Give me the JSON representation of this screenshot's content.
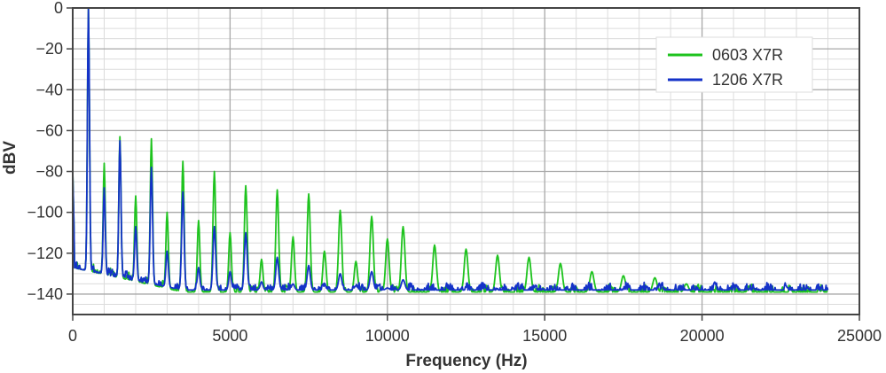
{
  "chart_data": {
    "type": "line",
    "title": "",
    "xlabel": "Frequency (Hz)",
    "ylabel": "dBV",
    "xlim": [
      0,
      25000
    ],
    "ylim": [
      -150,
      0
    ],
    "x_ticks": [
      0,
      5000,
      10000,
      15000,
      20000,
      25000
    ],
    "y_ticks": [
      0,
      -20,
      -40,
      -60,
      -80,
      -100,
      -120,
      -140
    ],
    "grid": true,
    "legend_position": "top-right",
    "floor": {
      "x_start": 0,
      "x_end": 24000,
      "level_0603": -139,
      "level_1206": -138,
      "low_freq_level": -127
    },
    "series": [
      {
        "name": "0603 X7R",
        "color": "#1ec31e",
        "harmonics_hz": [
          500,
          1000,
          1500,
          2000,
          2500,
          3000,
          3500,
          4000,
          4500,
          5000,
          5500,
          6000,
          6500,
          7000,
          7500,
          8000,
          8500,
          9000,
          9500,
          10000,
          10500,
          11500,
          12500,
          13500,
          14500,
          15500,
          16500,
          17500,
          18500,
          19500
        ],
        "harmonics_dbv": [
          0,
          -76,
          -63,
          -92,
          -64,
          -100,
          -75,
          -104,
          -80,
          -110,
          -87,
          -123,
          -89,
          -112,
          -91,
          -119,
          -99,
          -124,
          -102,
          -113,
          -107,
          -116,
          -118,
          -121,
          -122,
          -125,
          -129,
          -131,
          -132,
          -135
        ]
      },
      {
        "name": "1206 X7R",
        "color": "#1432c8",
        "harmonics_hz": [
          500,
          1000,
          1500,
          2000,
          2500,
          3000,
          3500,
          4000,
          4500,
          5000,
          5500,
          6000,
          6500,
          7000,
          7500,
          8000,
          8500,
          9000,
          9500,
          10000,
          10500
        ],
        "harmonics_dbv": [
          0,
          -88,
          -65,
          -107,
          -78,
          -119,
          -90,
          -127,
          -107,
          -129,
          -110,
          -134,
          -122,
          -135,
          -126,
          -136,
          -130,
          -136,
          -129,
          -137,
          -133
        ]
      }
    ]
  }
}
